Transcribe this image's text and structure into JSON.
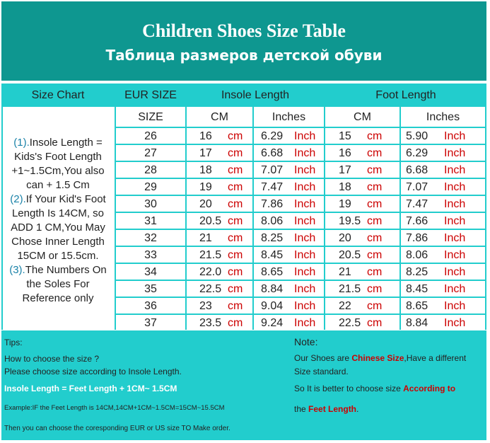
{
  "title_en": "Children Shoes Size Table",
  "title_ru": "Таблица размеров детской обуви",
  "headers": {
    "size_chart": "Size Chart",
    "eur_size": "EUR SIZE",
    "insole_length": "Insole Length",
    "foot_length": "Foot Length",
    "size": "SIZE",
    "cm": "CM",
    "inches": "Inches"
  },
  "units": {
    "cm": "cm",
    "inch": "Inch"
  },
  "notes": {
    "n1": "(1).",
    "l1a": "Insole Length =",
    "l1b": "Kids's Foot Length",
    "l1c": "+1~1.5Cm,You also",
    "l1d": "can + 1.5 Cm",
    "n2": "(2).",
    "l2a": "If Your Kid's Foot",
    "l2b": "Length Is 14CM,  so",
    "l2c": "ADD 1 CM,You May",
    "l2d": "Chose Inner Length",
    "l2e": "15CM or 15.5cm.",
    "n3": "(3).",
    "l3a": "The Numbers On",
    "l3b": "the Soles For",
    "l3c": "Reference only"
  },
  "rows": [
    {
      "eur": "26",
      "insole_cm": "16",
      "insole_in": "6.29",
      "foot_cm": "15",
      "foot_in": "5.90"
    },
    {
      "eur": "27",
      "insole_cm": "17",
      "insole_in": "6.68",
      "foot_cm": "16",
      "foot_in": "6.29"
    },
    {
      "eur": "28",
      "insole_cm": "18",
      "insole_in": "7.07",
      "foot_cm": "17",
      "foot_in": "6.68"
    },
    {
      "eur": "29",
      "insole_cm": "19",
      "insole_in": "7.47",
      "foot_cm": "18",
      "foot_in": "7.07"
    },
    {
      "eur": "30",
      "insole_cm": "20",
      "insole_in": "7.86",
      "foot_cm": "19",
      "foot_in": "7.47"
    },
    {
      "eur": "31",
      "insole_cm": "20.5",
      "insole_in": "8.06",
      "foot_cm": "19.5",
      "foot_in": "7.66"
    },
    {
      "eur": "32",
      "insole_cm": "21",
      "insole_in": "8.25",
      "foot_cm": "20",
      "foot_in": "7.86"
    },
    {
      "eur": "33",
      "insole_cm": "21.5",
      "insole_in": "8.45",
      "foot_cm": "20.5",
      "foot_in": "8.06"
    },
    {
      "eur": "34",
      "insole_cm": "22.0",
      "insole_in": "8.65",
      "foot_cm": "21",
      "foot_in": "8.25"
    },
    {
      "eur": "35",
      "insole_cm": "22.5",
      "insole_in": "8.84",
      "foot_cm": "21.5",
      "foot_in": "8.45"
    },
    {
      "eur": "36",
      "insole_cm": "23",
      "insole_in": "9.04",
      "foot_cm": "22",
      "foot_in": "8.65"
    },
    {
      "eur": "37",
      "insole_cm": "23.5",
      "insole_in": "9.24",
      "foot_cm": "22.5",
      "foot_in": "8.84"
    }
  ],
  "tips": {
    "label": "Tips:",
    "how": "How to choose the size ?",
    "please": "Please choose size according to Insole Length.",
    "formula": "Insole Length = Feet Length + 1CM~ 1.5CM",
    "example": "Example:IF the Feet Length is 14CM,14CM+1CM~1.5CM=15CM~15.5CM",
    "then": "Then you can choose the coresponding EUR or US size TO Make order."
  },
  "note": {
    "label": "Note:",
    "l1a": "Our Shoes are ",
    "l1b": "Chinese Size",
    "l1c": ",Have a different",
    "l2": "Size standard.",
    "l3a": "So It is better to choose size ",
    "l3b": "According to",
    "l4a": "the ",
    "l4b": "Feet Length",
    "l4c": "."
  },
  "colors": {
    "header_dark": "#0e9790",
    "header_light": "#22cdcd",
    "accent_red": "#cc0000",
    "note_blue": "#1a82a8"
  }
}
